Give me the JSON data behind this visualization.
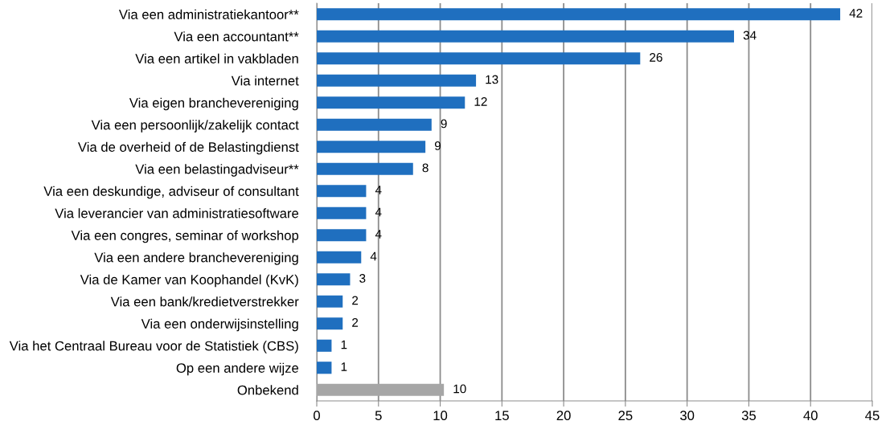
{
  "chart_data": {
    "type": "bar",
    "orientation": "horizontal",
    "categories": [
      "Via een administratiekantoor**",
      "Via een accountant**",
      "Via een artikel in vakbladen",
      "Via internet",
      "Via eigen branchevereniging",
      "Via een persoonlijk/zakelijk contact",
      "Via de overheid of de Belastingdienst",
      "Via een belastingadviseur**",
      "Via een deskundige, adviseur of consultant",
      "Via leverancier van administratiesoftware",
      "Via een congres, seminar of workshop",
      "Via een andere branchevereniging",
      "Via de Kamer van Koophandel (KvK)",
      "Via een bank/kredietverstrekker",
      "Via een onderwijsinstelling",
      "Via het Centraal Bureau voor de Statistiek (CBS)",
      "Op een andere wijze",
      "Onbekend"
    ],
    "values": [
      42.4,
      33.8,
      26.2,
      12.9,
      12.0,
      9.3,
      8.8,
      7.8,
      4.0,
      4.0,
      4.0,
      3.6,
      2.7,
      2.1,
      2.1,
      1.2,
      1.2,
      10.3
    ],
    "value_labels": [
      "42",
      "34",
      "26",
      "13",
      "12",
      "9",
      "9",
      "8",
      "4",
      "4",
      "4",
      "4",
      "3",
      "2",
      "2",
      "1",
      "1",
      "10"
    ],
    "colors": [
      "#1f6fbf",
      "#1f6fbf",
      "#1f6fbf",
      "#1f6fbf",
      "#1f6fbf",
      "#1f6fbf",
      "#1f6fbf",
      "#1f6fbf",
      "#1f6fbf",
      "#1f6fbf",
      "#1f6fbf",
      "#1f6fbf",
      "#1f6fbf",
      "#1f6fbf",
      "#1f6fbf",
      "#1f6fbf",
      "#1f6fbf",
      "#a6a6a6"
    ],
    "xlim": [
      0,
      45
    ],
    "xticks": [
      0,
      5,
      10,
      15,
      20,
      25,
      30,
      35,
      40,
      45
    ],
    "grid": "x"
  }
}
